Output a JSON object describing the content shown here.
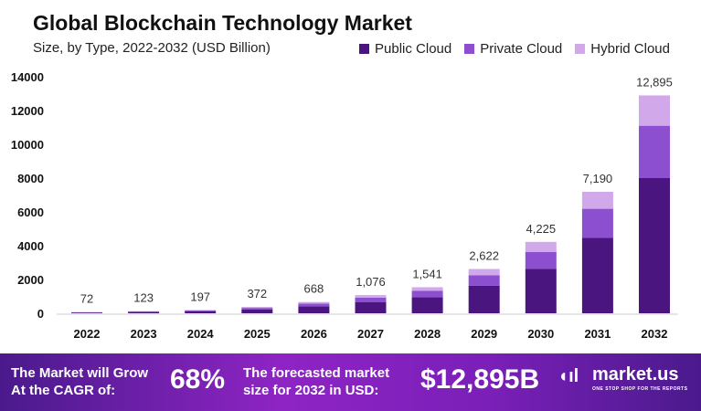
{
  "chart_data": {
    "type": "bar",
    "stacked": true,
    "title": "Global Blockchain Technology Market",
    "subtitle": "Size, by Type, 2022-2032 (USD Billion)",
    "categories": [
      "2022",
      "2023",
      "2024",
      "2025",
      "2026",
      "2027",
      "2028",
      "2029",
      "2030",
      "2031",
      "2032"
    ],
    "totals": [
      72,
      123,
      197,
      372,
      668,
      1076,
      1541,
      2622,
      4225,
      7190,
      12895
    ],
    "total_labels": [
      "72",
      "123",
      "197",
      "372",
      "668",
      "1,076",
      "1,541",
      "2,622",
      "4,225",
      "7,190",
      "12,895"
    ],
    "series": [
      {
        "name": "Public Cloud",
        "color": "#4b1580",
        "values": [
          45,
          76,
          122,
          231,
          414,
          667,
          955,
          1626,
          2620,
          4458,
          8000
        ]
      },
      {
        "name": "Private Cloud",
        "color": "#8b4fcf",
        "values": [
          17,
          30,
          47,
          89,
          160,
          258,
          370,
          629,
          1014,
          1726,
          3100
        ]
      },
      {
        "name": "Hybrid Cloud",
        "color": "#d1a8ea",
        "values": [
          10,
          17,
          28,
          52,
          94,
          151,
          216,
          367,
          591,
          1006,
          1795
        ]
      }
    ],
    "ylim": [
      0,
      14000
    ],
    "yticks": [
      "0",
      "2000",
      "4000",
      "6000",
      "8000",
      "10000",
      "12000",
      "14000"
    ],
    "grid": false,
    "legend": "top-right"
  },
  "banner": {
    "cagr_text_1": "The Market will Grow",
    "cagr_text_2": "At the CAGR of:",
    "cagr": "68%",
    "forecast_text_1": "The forecasted market",
    "forecast_text_2": "size for 2032 in USD:",
    "forecast": "$12,895B",
    "logo": "market.us",
    "tagline": "ONE STOP SHOP FOR THE REPORTS"
  }
}
